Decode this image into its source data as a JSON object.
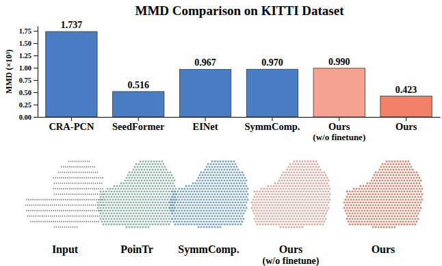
{
  "chart_data": {
    "type": "bar",
    "title": "MMD Comparison on KITTI Dataset",
    "y_label": "MMD (×10³)",
    "categories": [
      "CRA-PCN",
      "SeedFormer",
      "EINet",
      "SymmComp.",
      "Ours\n(w/o finetune)",
      "Ours"
    ],
    "values": [
      1.737,
      0.516,
      0.967,
      0.97,
      0.99,
      0.423
    ],
    "value_labels": [
      "1.737",
      "0.516",
      "0.967",
      "0.970",
      "0.990",
      "0.423"
    ],
    "colors": [
      "#4a7ec4",
      "#4a7ec4",
      "#4a7ec4",
      "#4a7ec4",
      "#f5a290",
      "#f08068"
    ],
    "data_labels": true,
    "ylim": [
      0,
      1.85
    ],
    "yticks": [
      {
        "value": 0,
        "label": "0.00"
      },
      {
        "value": 0.25,
        "label": "0.25"
      },
      {
        "value": 0.5,
        "label": "0.50"
      },
      {
        "value": 0.75,
        "label": "0.75"
      },
      {
        "value": 1,
        "label": "1.00"
      },
      {
        "value": 1.25,
        "label": "1.25"
      },
      {
        "value": 1.5,
        "label": "1.50"
      },
      {
        "value": 1.75,
        "label": "1.75"
      }
    ],
    "grid": false
  },
  "figure": {
    "labels": [
      [
        "Input"
      ],
      [
        "PoinTr"
      ],
      [
        "SymmComp."
      ],
      [
        "Ours",
        "(w/o finetune)"
      ],
      [
        "Ours"
      ]
    ]
  }
}
